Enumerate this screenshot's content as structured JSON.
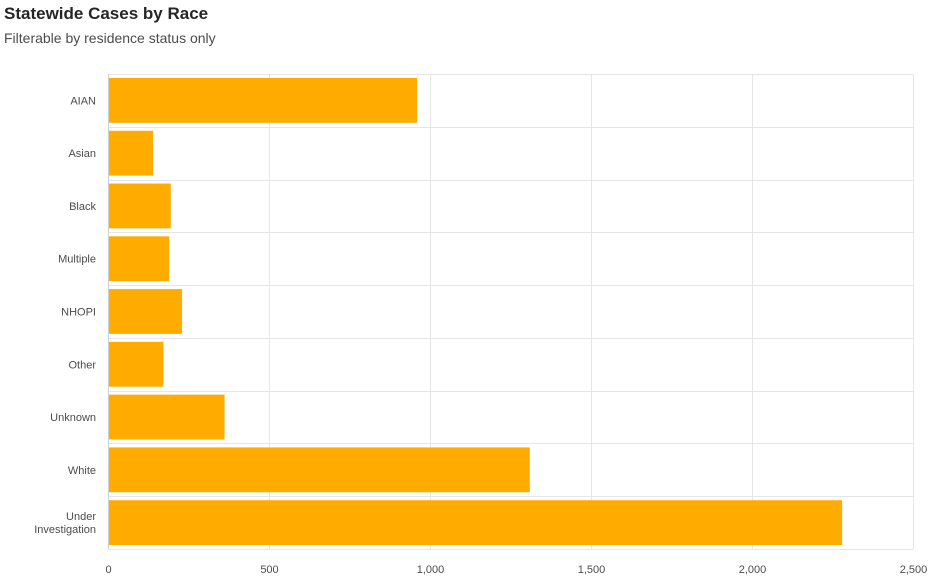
{
  "header": {
    "title": "Statewide Cases by Race",
    "subtitle": "Filterable by residence status only"
  },
  "colors": {
    "bar": "#ffab00",
    "grid": "#e6e6e6",
    "axis": "#cfcfcf"
  },
  "chart_data": {
    "type": "bar",
    "orientation": "horizontal",
    "title": "Statewide Cases by Race",
    "subtitle": "Filterable by residence status only",
    "categories": [
      "AIAN",
      "Asian",
      "Black",
      "Multiple",
      "NHOPI",
      "Other",
      "Unknown",
      "White",
      "Under Investigation"
    ],
    "category_label_lines": [
      [
        "AIAN"
      ],
      [
        "Asian"
      ],
      [
        "Black"
      ],
      [
        "Multiple"
      ],
      [
        "NHOPI"
      ],
      [
        "Other"
      ],
      [
        "Unknown"
      ],
      [
        "White"
      ],
      [
        "Under",
        "Investigation"
      ]
    ],
    "values": [
      960,
      140,
      195,
      190,
      230,
      172,
      362,
      1310,
      2280
    ],
    "xlim": [
      0,
      2500
    ],
    "xticks": [
      0,
      500,
      1000,
      1500,
      2000,
      2500
    ],
    "xtick_labels": [
      "0",
      "500",
      "1,000",
      "1,500",
      "2,000",
      "2,500"
    ],
    "xlabel": "",
    "ylabel": "",
    "grid": true,
    "legend": "none"
  }
}
